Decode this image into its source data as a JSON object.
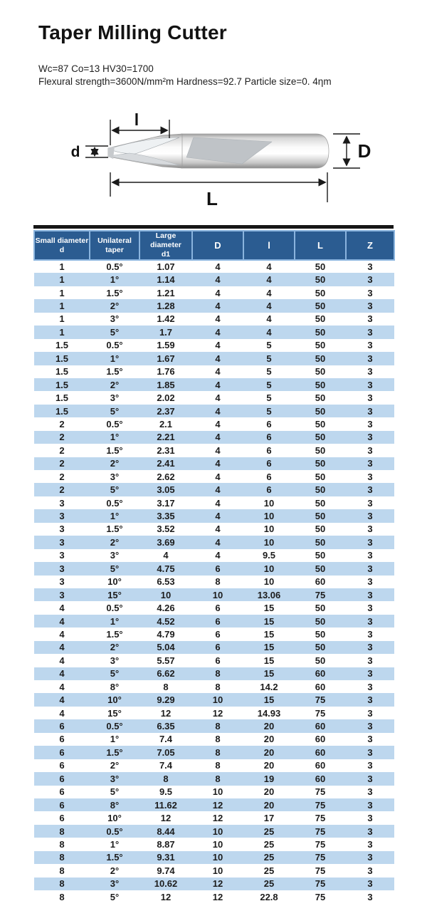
{
  "page": {
    "title": "Taper Milling Cutter"
  },
  "specs": {
    "line1": "Wc=87 Co=13 HV30=1700",
    "line2": "Flexural strength=3600N/mm²m Hardness=92.7 Particle size=0. 4ηm"
  },
  "diagram": {
    "labels": {
      "l": "l",
      "d": "d",
      "D": "D",
      "L": "L"
    }
  },
  "table": {
    "headers": [
      "Small diameter\nd",
      "Unilateral\ntaper",
      "Large diameter\nd1",
      "D",
      "l",
      "L",
      "Z"
    ],
    "rows": [
      [
        "1",
        "0.5°",
        "1.07",
        "4",
        "4",
        "50",
        "3"
      ],
      [
        "1",
        "1°",
        "1.14",
        "4",
        "4",
        "50",
        "3"
      ],
      [
        "1",
        "1.5°",
        "1.21",
        "4",
        "4",
        "50",
        "3"
      ],
      [
        "1",
        "2°",
        "1.28",
        "4",
        "4",
        "50",
        "3"
      ],
      [
        "1",
        "3°",
        "1.42",
        "4",
        "4",
        "50",
        "3"
      ],
      [
        "1",
        "5°",
        "1.7",
        "4",
        "4",
        "50",
        "3"
      ],
      [
        "1.5",
        "0.5°",
        "1.59",
        "4",
        "5",
        "50",
        "3"
      ],
      [
        "1.5",
        "1°",
        "1.67",
        "4",
        "5",
        "50",
        "3"
      ],
      [
        "1.5",
        "1.5°",
        "1.76",
        "4",
        "5",
        "50",
        "3"
      ],
      [
        "1.5",
        "2°",
        "1.85",
        "4",
        "5",
        "50",
        "3"
      ],
      [
        "1.5",
        "3°",
        "2.02",
        "4",
        "5",
        "50",
        "3"
      ],
      [
        "1.5",
        "5°",
        "2.37",
        "4",
        "5",
        "50",
        "3"
      ],
      [
        "2",
        "0.5°",
        "2.1",
        "4",
        "6",
        "50",
        "3"
      ],
      [
        "2",
        "1°",
        "2.21",
        "4",
        "6",
        "50",
        "3"
      ],
      [
        "2",
        "1.5°",
        "2.31",
        "4",
        "6",
        "50",
        "3"
      ],
      [
        "2",
        "2°",
        "2.41",
        "4",
        "6",
        "50",
        "3"
      ],
      [
        "2",
        "3°",
        "2.62",
        "4",
        "6",
        "50",
        "3"
      ],
      [
        "2",
        "5°",
        "3.05",
        "4",
        "6",
        "50",
        "3"
      ],
      [
        "3",
        "0.5°",
        "3.17",
        "4",
        "10",
        "50",
        "3"
      ],
      [
        "3",
        "1°",
        "3.35",
        "4",
        "10",
        "50",
        "3"
      ],
      [
        "3",
        "1.5°",
        "3.52",
        "4",
        "10",
        "50",
        "3"
      ],
      [
        "3",
        "2°",
        "3.69",
        "4",
        "10",
        "50",
        "3"
      ],
      [
        "3",
        "3°",
        "4",
        "4",
        "9.5",
        "50",
        "3"
      ],
      [
        "3",
        "5°",
        "4.75",
        "6",
        "10",
        "50",
        "3"
      ],
      [
        "3",
        "10°",
        "6.53",
        "8",
        "10",
        "60",
        "3"
      ],
      [
        "3",
        "15°",
        "10",
        "10",
        "13.06",
        "75",
        "3"
      ],
      [
        "4",
        "0.5°",
        "4.26",
        "6",
        "15",
        "50",
        "3"
      ],
      [
        "4",
        "1°",
        "4.52",
        "6",
        "15",
        "50",
        "3"
      ],
      [
        "4",
        "1.5°",
        "4.79",
        "6",
        "15",
        "50",
        "3"
      ],
      [
        "4",
        "2°",
        "5.04",
        "6",
        "15",
        "50",
        "3"
      ],
      [
        "4",
        "3°",
        "5.57",
        "6",
        "15",
        "50",
        "3"
      ],
      [
        "4",
        "5°",
        "6.62",
        "8",
        "15",
        "60",
        "3"
      ],
      [
        "4",
        "8°",
        "8",
        "8",
        "14.2",
        "60",
        "3"
      ],
      [
        "4",
        "10°",
        "9.29",
        "10",
        "15",
        "75",
        "3"
      ],
      [
        "4",
        "15°",
        "12",
        "12",
        "14.93",
        "75",
        "3"
      ],
      [
        "6",
        "0.5°",
        "6.35",
        "8",
        "20",
        "60",
        "3"
      ],
      [
        "6",
        "1°",
        "7.4",
        "8",
        "20",
        "60",
        "3"
      ],
      [
        "6",
        "1.5°",
        "7.05",
        "8",
        "20",
        "60",
        "3"
      ],
      [
        "6",
        "2°",
        "7.4",
        "8",
        "20",
        "60",
        "3"
      ],
      [
        "6",
        "3°",
        "8",
        "8",
        "19",
        "60",
        "3"
      ],
      [
        "6",
        "5°",
        "9.5",
        "10",
        "20",
        "75",
        "3"
      ],
      [
        "6",
        "8°",
        "11.62",
        "12",
        "20",
        "75",
        "3"
      ],
      [
        "6",
        "10°",
        "12",
        "12",
        "17",
        "75",
        "3"
      ],
      [
        "8",
        "0.5°",
        "8.44",
        "10",
        "25",
        "75",
        "3"
      ],
      [
        "8",
        "1°",
        "8.87",
        "10",
        "25",
        "75",
        "3"
      ],
      [
        "8",
        "1.5°",
        "9.31",
        "10",
        "25",
        "75",
        "3"
      ],
      [
        "8",
        "2°",
        "9.74",
        "10",
        "25",
        "75",
        "3"
      ],
      [
        "8",
        "3°",
        "10.62",
        "12",
        "25",
        "75",
        "3"
      ],
      [
        "8",
        "5°",
        "12",
        "12",
        "22.8",
        "75",
        "3"
      ]
    ]
  },
  "colors": {
    "header_bg": "#2b5c91",
    "header_border": "#8ab4de",
    "row_stripe": "#bdd7ee",
    "rule": "#161616"
  }
}
